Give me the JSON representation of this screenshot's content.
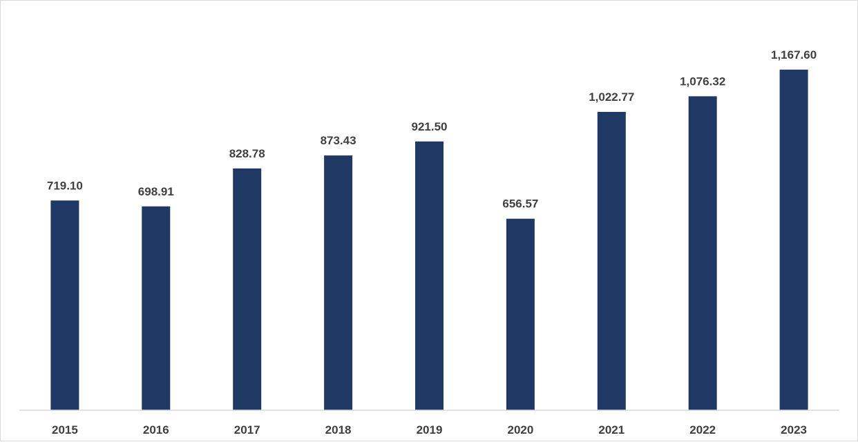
{
  "chart_data": {
    "type": "bar",
    "categories": [
      "2015",
      "2016",
      "2017",
      "2018",
      "2019",
      "2020",
      "2021",
      "2022",
      "2023"
    ],
    "values": [
      719.1,
      698.91,
      828.78,
      873.43,
      921.5,
      656.57,
      1022.77,
      1076.32,
      1167.6
    ],
    "data_labels": [
      "719.10",
      "698.91",
      "828.78",
      "873.43",
      "921.50",
      "656.57",
      "1,022.77",
      "1,076.32",
      "1,167.60"
    ],
    "title": "",
    "xlabel": "",
    "ylabel": "",
    "ylim": [
      0,
      1300
    ],
    "grid": false,
    "legend": "none",
    "bar_color": "#203864",
    "axis_color": "#d9d9d9",
    "label_color": "#404040"
  }
}
